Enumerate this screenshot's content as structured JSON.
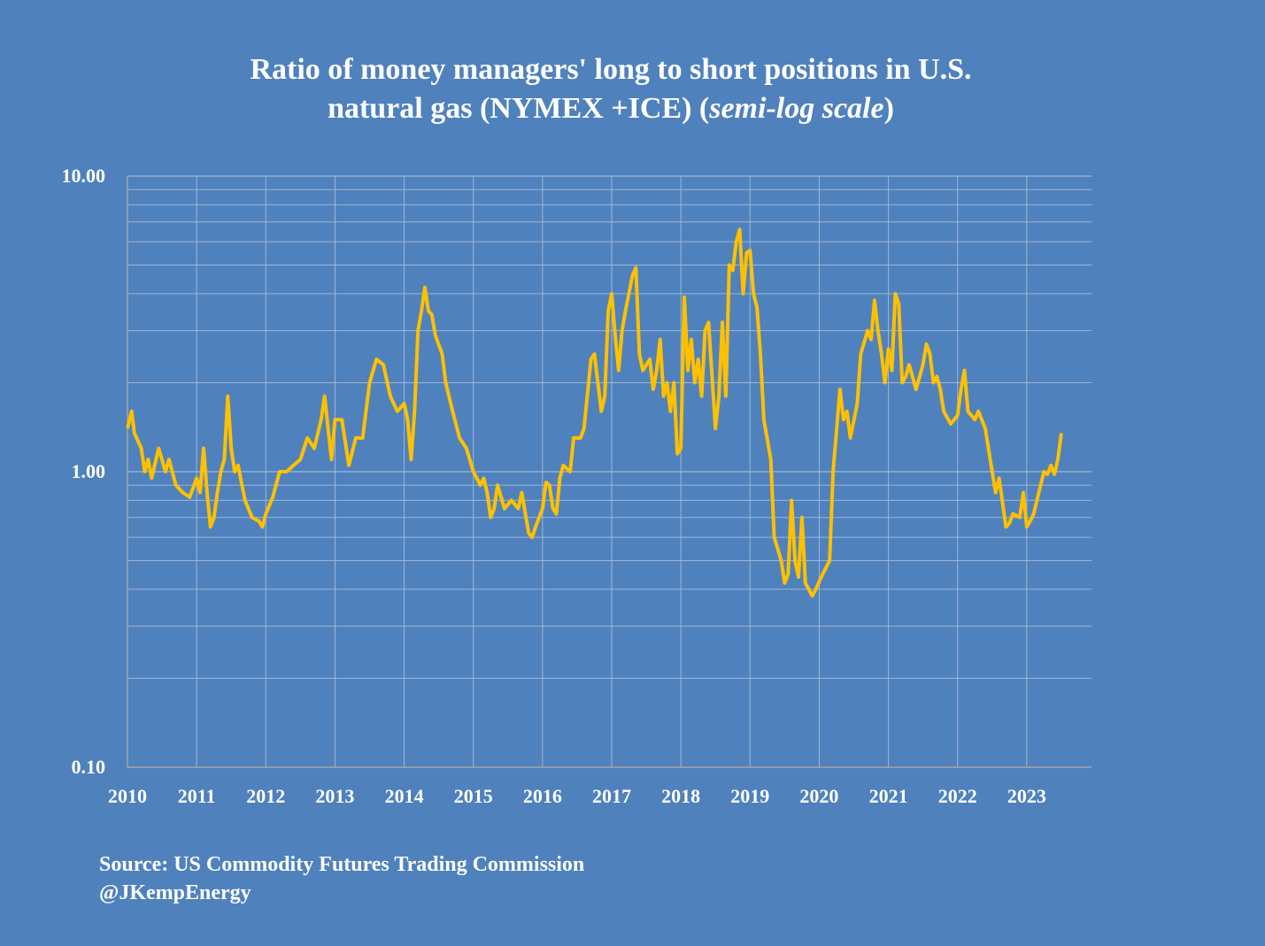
{
  "chart_data": {
    "type": "line",
    "title_parts": [
      "Ratio of money managers' long to short positions in U.S.",
      "natural gas  (NYMEX +ICE) (",
      "semi-log scale",
      ")"
    ],
    "footnotes": [
      "Source: US Commodity Futures Trading Commission",
      "@JKempEnergy"
    ],
    "log_y": true,
    "grid": true,
    "color": "#ffc000",
    "xlim": [
      2010,
      2024
    ],
    "xticks": [
      2010,
      2011,
      2012,
      2013,
      2014,
      2015,
      2016,
      2017,
      2018,
      2019,
      2020,
      2021,
      2022,
      2023
    ],
    "ylim": [
      0.1,
      10
    ],
    "yticks": [
      {
        "value": 0.1,
        "label": "0.10"
      },
      {
        "value": 1,
        "label": "1.00"
      },
      {
        "value": 10,
        "label": "10.00"
      }
    ],
    "minor_yticks": [
      0.2,
      0.3,
      0.4,
      0.5,
      0.6,
      0.7,
      0.8,
      0.9,
      2,
      3,
      4,
      5,
      6,
      7,
      8,
      9
    ],
    "x": [
      2010.0,
      2010.06,
      2010.1,
      2010.2,
      2010.25,
      2010.3,
      2010.35,
      2010.45,
      2010.55,
      2010.6,
      2010.7,
      2010.8,
      2010.9,
      2011.0,
      2011.05,
      2011.1,
      2011.15,
      2011.2,
      2011.25,
      2011.3,
      2011.35,
      2011.4,
      2011.45,
      2011.5,
      2011.55,
      2011.6,
      2011.7,
      2011.8,
      2011.9,
      2011.95,
      2012.0,
      2012.1,
      2012.2,
      2012.3,
      2012.4,
      2012.5,
      2012.6,
      2012.7,
      2012.8,
      2012.85,
      2012.9,
      2012.95,
      2013.0,
      2013.1,
      2013.2,
      2013.3,
      2013.4,
      2013.5,
      2013.6,
      2013.7,
      2013.8,
      2013.9,
      2014.0,
      2014.05,
      2014.1,
      2014.15,
      2014.2,
      2014.25,
      2014.3,
      2014.35,
      2014.4,
      2014.45,
      2014.55,
      2014.6,
      2014.7,
      2014.8,
      2014.9,
      2015.0,
      2015.05,
      2015.1,
      2015.15,
      2015.2,
      2015.25,
      2015.3,
      2015.35,
      2015.45,
      2015.55,
      2015.65,
      2015.7,
      2015.8,
      2015.85,
      2015.9,
      2016.0,
      2016.05,
      2016.1,
      2016.15,
      2016.2,
      2016.25,
      2016.3,
      2016.4,
      2016.45,
      2016.55,
      2016.6,
      2016.7,
      2016.75,
      2016.8,
      2016.85,
      2016.9,
      2016.95,
      2017.0,
      2017.05,
      2017.1,
      2017.15,
      2017.2,
      2017.3,
      2017.35,
      2017.4,
      2017.45,
      2017.55,
      2017.6,
      2017.65,
      2017.7,
      2017.75,
      2017.8,
      2017.85,
      2017.9,
      2017.95,
      2018.0,
      2018.05,
      2018.1,
      2018.15,
      2018.2,
      2018.25,
      2018.3,
      2018.35,
      2018.4,
      2018.5,
      2018.55,
      2018.6,
      2018.65,
      2018.7,
      2018.75,
      2018.8,
      2018.85,
      2018.9,
      2018.95,
      2019.0,
      2019.05,
      2019.1,
      2019.15,
      2019.2,
      2019.3,
      2019.35,
      2019.45,
      2019.5,
      2019.55,
      2019.6,
      2019.65,
      2019.7,
      2019.75,
      2019.8,
      2019.9,
      2019.95,
      2020.05,
      2020.15,
      2020.2,
      2020.3,
      2020.35,
      2020.4,
      2020.45,
      2020.55,
      2020.6,
      2020.7,
      2020.75,
      2020.8,
      2020.85,
      2020.9,
      2020.95,
      2021.0,
      2021.05,
      2021.1,
      2021.15,
      2021.2,
      2021.25,
      2021.3,
      2021.4,
      2021.5,
      2021.55,
      2021.6,
      2021.65,
      2021.7,
      2021.75,
      2021.8,
      2021.9,
      2022.0,
      2022.05,
      2022.1,
      2022.15,
      2022.25,
      2022.3,
      2022.4,
      2022.5,
      2022.55,
      2022.6,
      2022.7,
      2022.75,
      2022.8,
      2022.9,
      2022.95,
      2023.0,
      2023.05,
      2023.1,
      2023.2,
      2023.25,
      2023.3,
      2023.35,
      2023.4,
      2023.45,
      2023.5
    ],
    "values": [
      1.4,
      1.6,
      1.35,
      1.2,
      1.0,
      1.1,
      0.95,
      1.2,
      1.0,
      1.1,
      0.9,
      0.85,
      0.82,
      0.95,
      0.85,
      1.2,
      0.85,
      0.65,
      0.7,
      0.85,
      1.0,
      1.1,
      1.8,
      1.2,
      1.0,
      1.05,
      0.8,
      0.7,
      0.68,
      0.65,
      0.72,
      0.82,
      1.0,
      1.0,
      1.05,
      1.1,
      1.3,
      1.2,
      1.5,
      1.8,
      1.4,
      1.1,
      1.5,
      1.5,
      1.05,
      1.3,
      1.3,
      2.0,
      2.4,
      2.3,
      1.8,
      1.6,
      1.7,
      1.5,
      1.1,
      1.6,
      3.0,
      3.5,
      4.2,
      3.5,
      3.4,
      2.9,
      2.5,
      2.0,
      1.6,
      1.3,
      1.2,
      1.0,
      0.95,
      0.9,
      0.95,
      0.85,
      0.7,
      0.75,
      0.9,
      0.75,
      0.8,
      0.75,
      0.85,
      0.62,
      0.6,
      0.65,
      0.75,
      0.92,
      0.9,
      0.75,
      0.72,
      0.95,
      1.05,
      1.0,
      1.3,
      1.3,
      1.4,
      2.4,
      2.5,
      2.0,
      1.6,
      1.8,
      3.5,
      4.0,
      2.9,
      2.2,
      3.0,
      3.5,
      4.6,
      4.9,
      2.5,
      2.2,
      2.4,
      1.9,
      2.2,
      2.8,
      1.8,
      2.0,
      1.6,
      2.0,
      1.15,
      1.2,
      3.9,
      2.2,
      2.8,
      2.0,
      2.4,
      1.8,
      3.0,
      3.2,
      1.4,
      1.8,
      3.2,
      1.8,
      5.0,
      4.8,
      6.0,
      6.6,
      4.0,
      5.5,
      5.6,
      4.0,
      3.6,
      2.5,
      1.5,
      1.1,
      0.6,
      0.5,
      0.42,
      0.45,
      0.8,
      0.5,
      0.44,
      0.7,
      0.42,
      0.38,
      0.4,
      0.45,
      0.5,
      1.0,
      1.9,
      1.5,
      1.6,
      1.3,
      1.7,
      2.5,
      3.0,
      2.8,
      3.8,
      3.0,
      2.5,
      2.0,
      2.6,
      2.2,
      4.0,
      3.7,
      2.0,
      2.1,
      2.3,
      1.9,
      2.3,
      2.7,
      2.5,
      2.0,
      2.1,
      1.9,
      1.6,
      1.45,
      1.55,
      1.9,
      2.2,
      1.6,
      1.5,
      1.6,
      1.4,
      1.0,
      0.85,
      0.95,
      0.65,
      0.67,
      0.72,
      0.7,
      0.85,
      0.65,
      0.68,
      0.72,
      0.9,
      1.0,
      0.98,
      1.05,
      0.98,
      1.1,
      1.35
    ]
  }
}
